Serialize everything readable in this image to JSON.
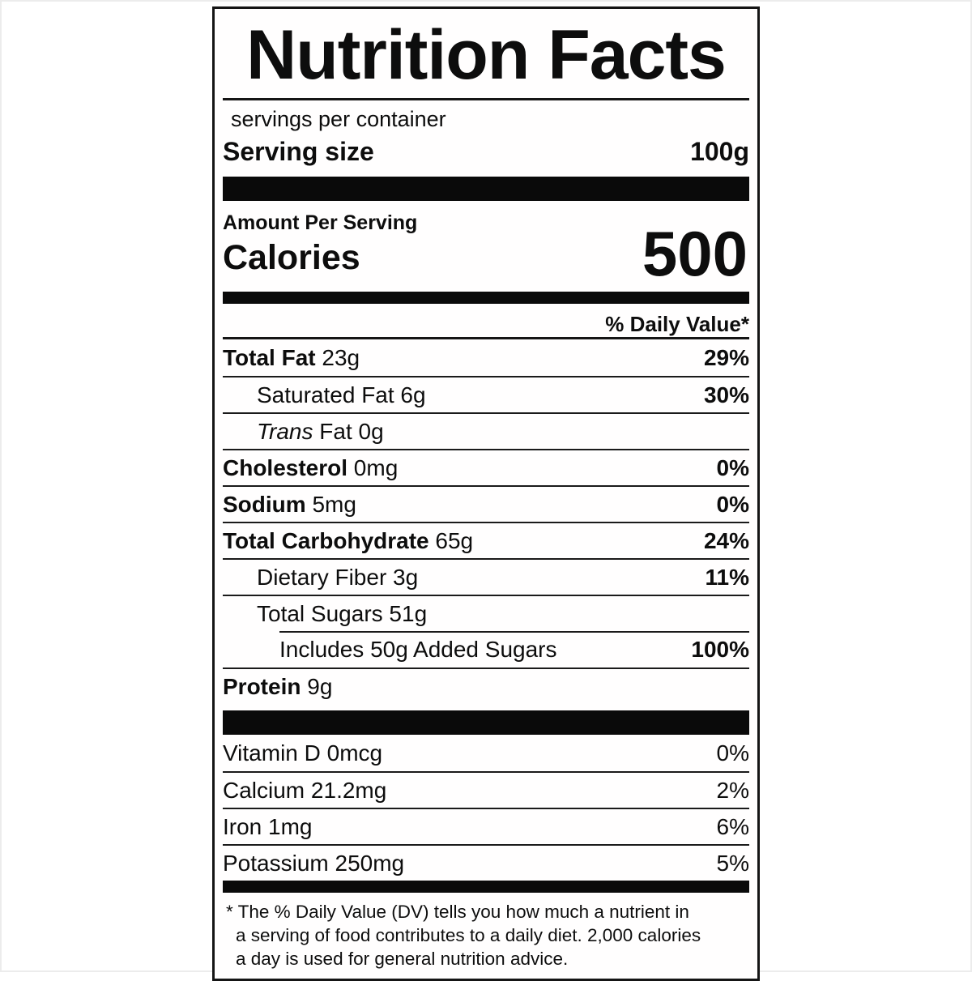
{
  "label": {
    "title": "Nutrition Facts",
    "servings_per_container": "servings per container",
    "serving_size": {
      "label": "Serving size",
      "value": "100g"
    },
    "amount_per_serving": "Amount Per Serving",
    "calories": {
      "label": "Calories",
      "value": "500"
    },
    "daily_value_header": "% Daily Value*",
    "nutrients": [
      {
        "name": "Total Fat",
        "amount": "23g",
        "dv": "29%",
        "emphasis": "bold",
        "indent": 0
      },
      {
        "name": "Saturated Fat",
        "amount": "6g",
        "dv": "30%",
        "emphasis": "none",
        "indent": 1
      },
      {
        "name": "Trans Fat",
        "amount": "0g",
        "dv": "",
        "emphasis": "italic-first",
        "indent": 1
      },
      {
        "name": "Cholesterol",
        "amount": "0mg",
        "dv": "0%",
        "emphasis": "bold",
        "indent": 0
      },
      {
        "name": "Sodium",
        "amount": "5mg",
        "dv": "0%",
        "emphasis": "bold",
        "indent": 0
      },
      {
        "name": "Total Carbohydrate",
        "amount": "65g",
        "dv": "24%",
        "emphasis": "bold",
        "indent": 0
      },
      {
        "name": "Dietary Fiber",
        "amount": "3g",
        "dv": "11%",
        "emphasis": "none",
        "indent": 1
      },
      {
        "name": "Total Sugars",
        "amount": "51g",
        "dv": "",
        "emphasis": "none",
        "indent": 1
      },
      {
        "name": "Includes 50g Added Sugars",
        "amount": "",
        "dv": "100%",
        "emphasis": "none",
        "indent": 2,
        "partial_rule": true
      },
      {
        "name": "Protein",
        "amount": "9g",
        "dv": "",
        "emphasis": "bold",
        "indent": 0
      }
    ],
    "vitamins": [
      {
        "name": "Vitamin D",
        "amount": "0mcg",
        "dv": "0%"
      },
      {
        "name": "Calcium",
        "amount": "21.2mg",
        "dv": "2%"
      },
      {
        "name": "Iron",
        "amount": "1mg",
        "dv": "6%"
      },
      {
        "name": "Potassium",
        "amount": "250mg",
        "dv": "5%"
      }
    ],
    "footnote_lines": [
      "* The % Daily Value (DV) tells you how much a nutrient in",
      "a serving of food contributes to a daily diet. 2,000 calories",
      "a day is used for general nutrition advice."
    ]
  },
  "colors": {
    "ink": "#0d0d0d",
    "paper": "#ffffff"
  }
}
